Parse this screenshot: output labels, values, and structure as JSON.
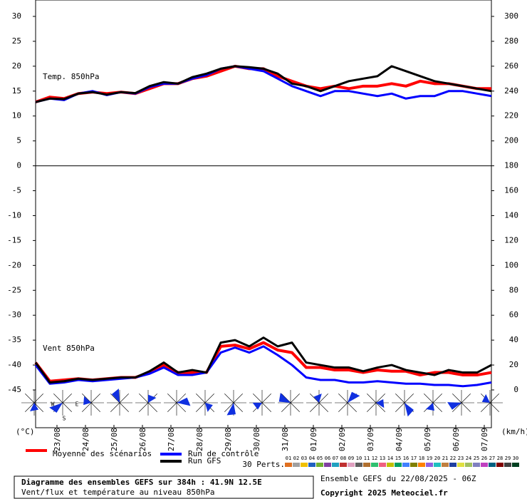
{
  "chart_data": {
    "type": "line",
    "title": "Diagramme des ensembles GEFS sur 384h : 41.9N 12.5E",
    "subtitle": "Vent/flux et température au niveau 850hPa",
    "run_label": "Ensemble GEFS du 22/08/2025 - 06Z",
    "copyright": "Copyright 2025 Meteociel.fr",
    "temp_label": "Temp. 850hPa",
    "wind_label": "Vent 850hPa",
    "ylabel": "(°C)",
    "y2label": "(km/h)",
    "rose_labels": [
      "W",
      "E",
      "S"
    ],
    "perts_label": "30 Perts.",
    "perts": [
      "01",
      "02",
      "03",
      "04",
      "05",
      "06",
      "07",
      "08",
      "09",
      "10",
      "11",
      "12",
      "13",
      "14",
      "15",
      "16",
      "17",
      "18",
      "19",
      "20",
      "21",
      "22",
      "23",
      "24",
      "25",
      "26",
      "27",
      "28",
      "29",
      "30"
    ],
    "pert_colors": [
      "#e07020",
      "#a0a0a0",
      "#f0c000",
      "#2060c0",
      "#70b030",
      "#8040a0",
      "#20a0c0",
      "#c03030",
      "#e0a0c0",
      "#606060",
      "#b07030",
      "#30c070",
      "#f06080",
      "#c0c000",
      "#00a060",
      "#4080ff",
      "#808000",
      "#ff8000",
      "#9060e0",
      "#20c0c0",
      "#c08040",
      "#2040a0",
      "#e0e040",
      "#a0c060",
      "#8080c0",
      "#c040c0",
      "#006080",
      "#800000",
      "#404040",
      "#004020"
    ],
    "xlim": [
      0,
      384
    ],
    "xticks": [
      {
        "value": 18,
        "label": "23/08"
      },
      {
        "value": 42,
        "label": "24/08"
      },
      {
        "value": 66,
        "label": "25/08"
      },
      {
        "value": 90,
        "label": "26/08"
      },
      {
        "value": 114,
        "label": "27/08"
      },
      {
        "value": 138,
        "label": "28/08"
      },
      {
        "value": 162,
        "label": "29/08"
      },
      {
        "value": 186,
        "label": "30/08"
      },
      {
        "value": 210,
        "label": "31/08"
      },
      {
        "value": 234,
        "label": "01/09"
      },
      {
        "value": 258,
        "label": "02/09"
      },
      {
        "value": 282,
        "label": "03/09"
      },
      {
        "value": 306,
        "label": "04/09"
      },
      {
        "value": 330,
        "label": "05/09"
      },
      {
        "value": 354,
        "label": "06/09"
      },
      {
        "value": 378,
        "label": "07/09"
      }
    ],
    "ylim": [
      -45,
      30
    ],
    "yticks": [
      30,
      25,
      20,
      15,
      10,
      5,
      0,
      -5,
      -10,
      -15,
      -20,
      -25,
      -30,
      -35,
      -40,
      -45
    ],
    "y2lim": [
      0,
      300
    ],
    "y2ticks": [
      300,
      280,
      260,
      240,
      220,
      200,
      180,
      160,
      140,
      120,
      100,
      80,
      60,
      40,
      20,
      0
    ],
    "x": [
      0,
      12,
      24,
      36,
      48,
      60,
      72,
      84,
      96,
      108,
      120,
      132,
      144,
      156,
      168,
      180,
      192,
      204,
      216,
      228,
      240,
      252,
      264,
      276,
      288,
      300,
      312,
      324,
      336,
      348,
      360,
      372,
      384
    ],
    "series": [
      {
        "name": "Moyenne des scénarios",
        "color": "#ff0000",
        "width": 4,
        "values": [
          12.8,
          13.8,
          13.5,
          14.5,
          14.8,
          14.5,
          14.8,
          14.5,
          15.5,
          16.5,
          16.5,
          17.5,
          18,
          19,
          20,
          19.5,
          19.5,
          18,
          17,
          16,
          15.5,
          16,
          15.5,
          16,
          16,
          16.5,
          16,
          17,
          16.5,
          16.5,
          16,
          15.5,
          15.5
        ],
        "y2_values": [
          22,
          7,
          8,
          9,
          8,
          9,
          10,
          10,
          14,
          20,
          14,
          14,
          14,
          35,
          36,
          33,
          38,
          32,
          30,
          18,
          18,
          16,
          16,
          14,
          16,
          15,
          15,
          12,
          14,
          14,
          12,
          12,
          14
        ]
      },
      {
        "name": "Run de contrôle",
        "color": "#0000ff",
        "width": 3,
        "values": [
          12.8,
          13.5,
          13.2,
          14.5,
          15,
          14.2,
          14.8,
          14.5,
          15.8,
          16.5,
          16.5,
          17.5,
          18.2,
          19.5,
          20,
          19.5,
          19,
          17.5,
          16,
          15,
          14,
          15,
          15,
          14.5,
          14,
          14.5,
          13.5,
          14,
          14,
          15,
          15,
          14.5,
          14
        ],
        "y2_values": [
          20,
          5,
          6,
          8,
          7,
          8,
          9,
          10,
          13,
          18,
          12,
          12,
          14,
          30,
          34,
          30,
          35,
          28,
          20,
          10,
          8,
          8,
          6,
          6,
          7,
          6,
          5,
          5,
          4,
          4,
          3,
          4,
          6
        ]
      },
      {
        "name": "Run GFS",
        "color": "#000000",
        "width": 3,
        "values": [
          12.8,
          13.5,
          13.4,
          14.5,
          14.8,
          14.3,
          14.8,
          14.6,
          16,
          16.8,
          16.5,
          17.8,
          18.5,
          19.5,
          20,
          19.8,
          19.5,
          18.5,
          16.5,
          16,
          15,
          16,
          17,
          17.5,
          18,
          20,
          19,
          18,
          17,
          16.5,
          16,
          15.5,
          15
        ],
        "y2_values": [
          22,
          6,
          7,
          9,
          8,
          9,
          10,
          10,
          15,
          22,
          14,
          16,
          14,
          38,
          40,
          35,
          42,
          35,
          38,
          22,
          20,
          18,
          18,
          15,
          18,
          20,
          16,
          14,
          12,
          16,
          14,
          14,
          20
        ]
      }
    ]
  }
}
